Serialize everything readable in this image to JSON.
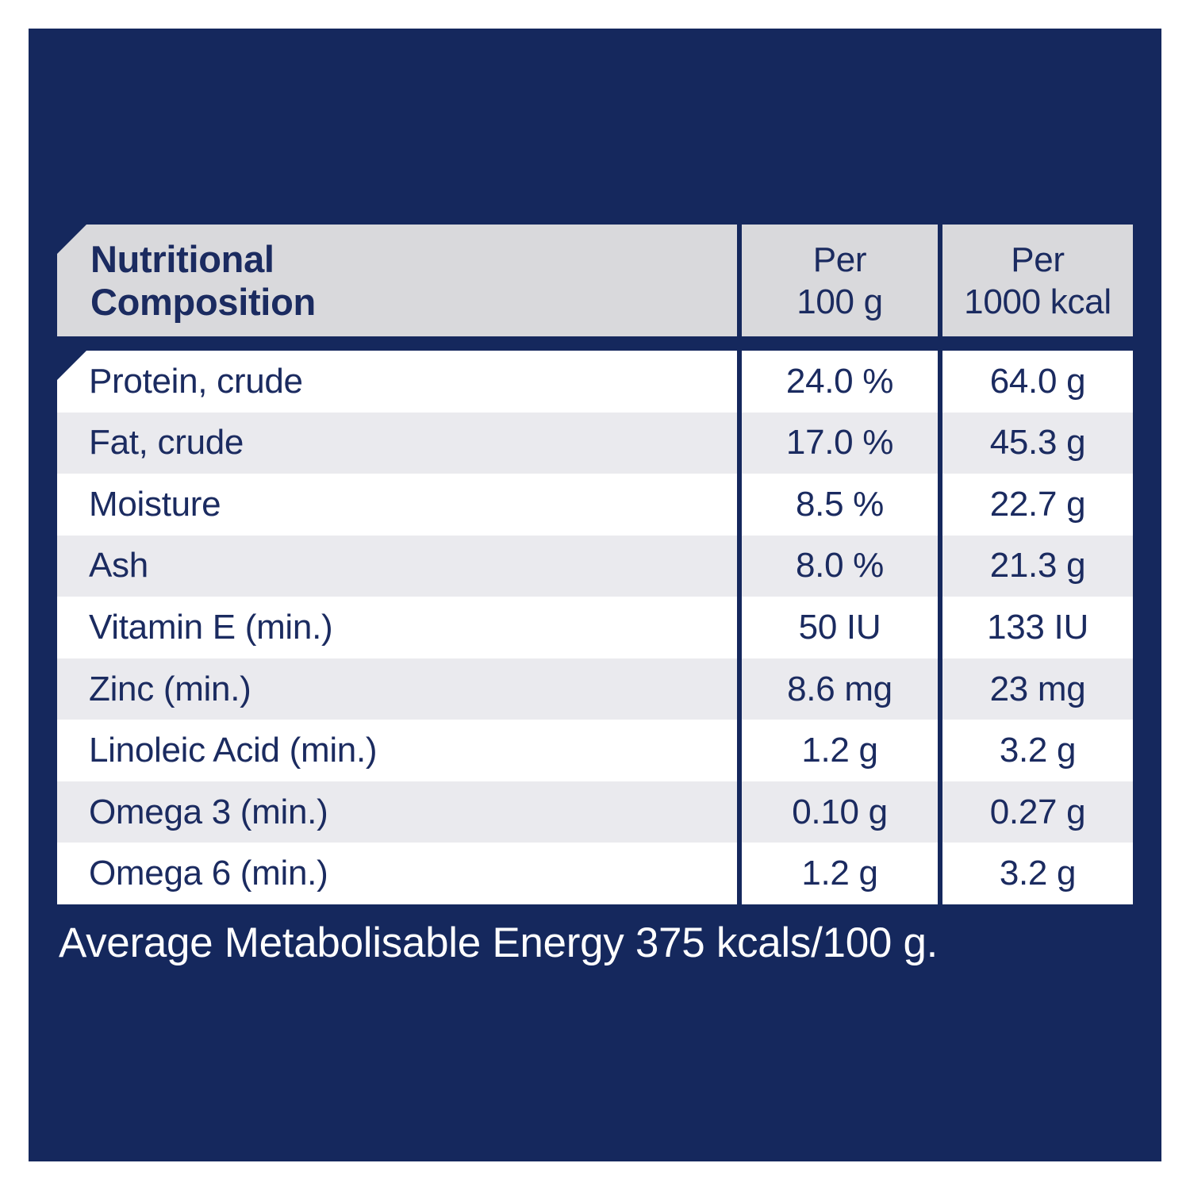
{
  "colors": {
    "page_bg": "#FFFFFF",
    "panel_navy": "#15285D",
    "text_navy": "#1B2B60",
    "header_gray": "#D9D9DC",
    "row_gray": "#EAEAEE",
    "row_white": "#FFFFFF",
    "footer_text": "#FFFFFF"
  },
  "table": {
    "header": {
      "title_line1": "Nutritional",
      "title_line2": "Composition",
      "col2_line1": "Per",
      "col2_line2": "100 g",
      "col3_line1": "Per",
      "col3_line2": "1000 kcal"
    },
    "rows": [
      {
        "label": "Protein, crude",
        "per_100g": "24.0 %",
        "per_1000kcal": "64.0 g"
      },
      {
        "label": "Fat, crude",
        "per_100g": "17.0 %",
        "per_1000kcal": "45.3 g"
      },
      {
        "label": "Moisture",
        "per_100g": "8.5 %",
        "per_1000kcal": "22.7 g"
      },
      {
        "label": "Ash",
        "per_100g": "8.0 %",
        "per_1000kcal": "21.3 g"
      },
      {
        "label": "Vitamin E (min.)",
        "per_100g": "50 IU",
        "per_1000kcal": "133 IU"
      },
      {
        "label": "Zinc (min.)",
        "per_100g": "8.6 mg",
        "per_1000kcal": "23 mg"
      },
      {
        "label": "Linoleic Acid (min.)",
        "per_100g": "1.2 g",
        "per_1000kcal": "3.2 g"
      },
      {
        "label": "Omega 3 (min.)",
        "per_100g": "0.10 g",
        "per_1000kcal": "0.27 g"
      },
      {
        "label": "Omega 6 (min.)",
        "per_100g": "1.2 g",
        "per_1000kcal": "3.2 g"
      }
    ]
  },
  "footer": {
    "text": "Average Metabolisable Energy 375 kcals/100 g."
  }
}
